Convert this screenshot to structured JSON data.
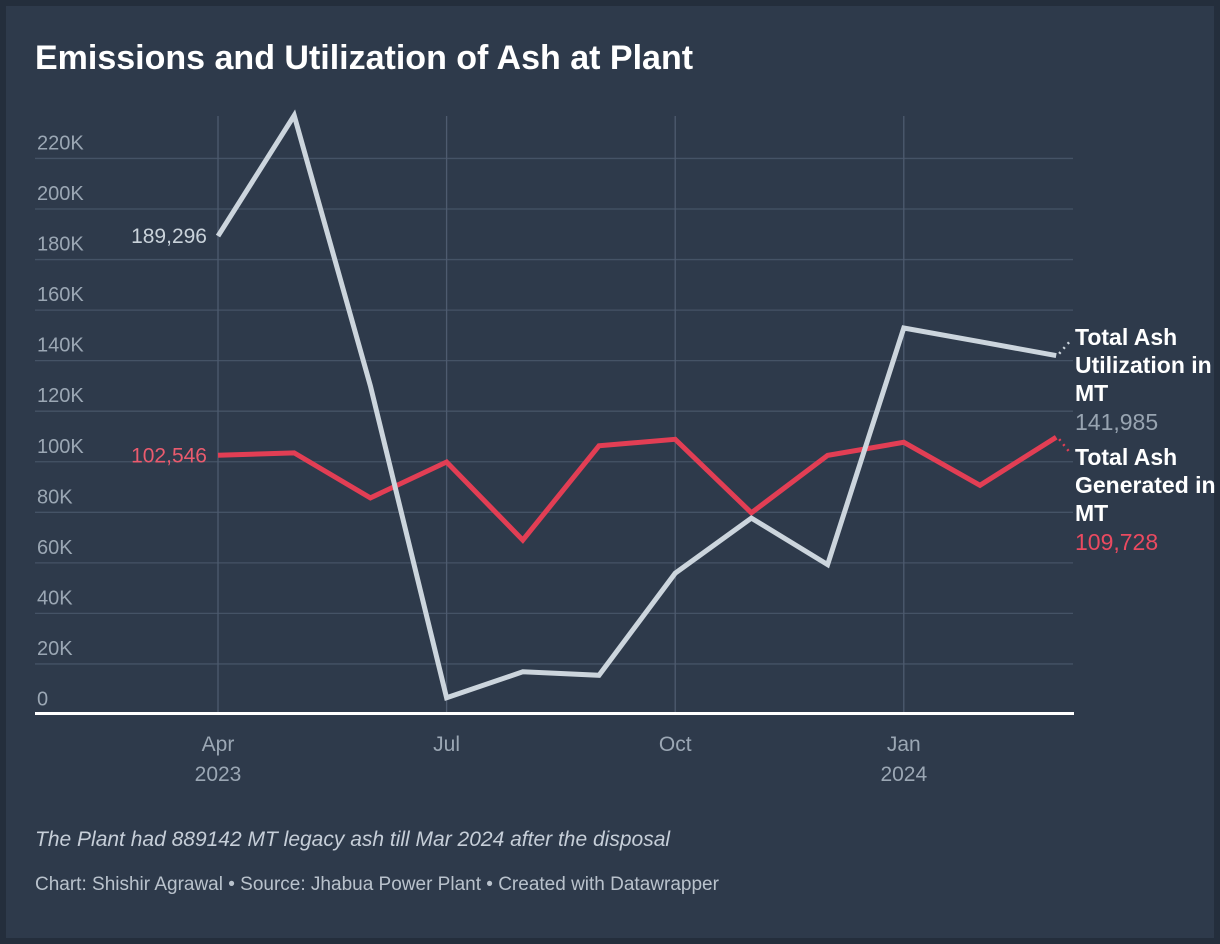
{
  "title": "Emissions and Utilization of Ash at Plant",
  "footnote": "The Plant had 889142 MT legacy ash till Mar 2024 after the disposal",
  "byline": "Chart: Shishir Agrawal • Source: Jhabua Power Plant • Created with Datawrapper",
  "legend": {
    "utilization": {
      "label": "Total Ash Utilization in MT",
      "value": "141,985"
    },
    "generated": {
      "label": "Total Ash Generated in MT",
      "value": "109,728"
    }
  },
  "colors": {
    "background": "#2e3a4b",
    "frame": "#242e3c",
    "title_text": "#ffffff",
    "gridline": "#455366",
    "vertical_gridline": "#4e5b6f",
    "axis_line": "#ffffff",
    "tick_label": "#9ba7b4",
    "utilization_line": "#ccd5dd",
    "generated_line": "#e23e54",
    "utilization_start_label": "#c9d2da",
    "generated_start_label": "#ea5b6e",
    "utilization_value_label": "#98a4b1",
    "generated_value_label": "#ea4a60"
  },
  "chart_data": {
    "type": "line",
    "x": [
      "Apr 2023",
      "May 2023",
      "Jun 2023",
      "Jul 2023",
      "Aug 2023",
      "Sep 2023",
      "Oct 2023",
      "Nov 2023",
      "Dec 2023",
      "Jan 2024",
      "Feb 2024",
      "Mar 2024"
    ],
    "series": [
      {
        "name": "Total Ash Utilization in MT",
        "color": "#ccd5dd",
        "values": [
          189296,
          237000,
          130000,
          6600,
          16900,
          15500,
          55900,
          77700,
          59300,
          152900,
          147500,
          141985
        ],
        "start_label": "189,296",
        "end_label": "141,985"
      },
      {
        "name": "Total Ash Generated in MT",
        "color": "#e23e54",
        "values": [
          102546,
          103500,
          85700,
          99900,
          69000,
          106300,
          108900,
          79800,
          102500,
          107700,
          90700,
          109728
        ],
        "start_label": "102,546",
        "end_label": "109,728"
      }
    ],
    "x_ticks": [
      {
        "index": 0,
        "label": "Apr",
        "year": "2023"
      },
      {
        "index": 3,
        "label": "Jul"
      },
      {
        "index": 6,
        "label": "Oct"
      },
      {
        "index": 9,
        "label": "Jan",
        "year": "2024"
      }
    ],
    "ylim": [
      0,
      220000
    ],
    "ystep": 20000,
    "y_tick_format": "thousands-K",
    "grid": true,
    "legend_position": "right"
  }
}
